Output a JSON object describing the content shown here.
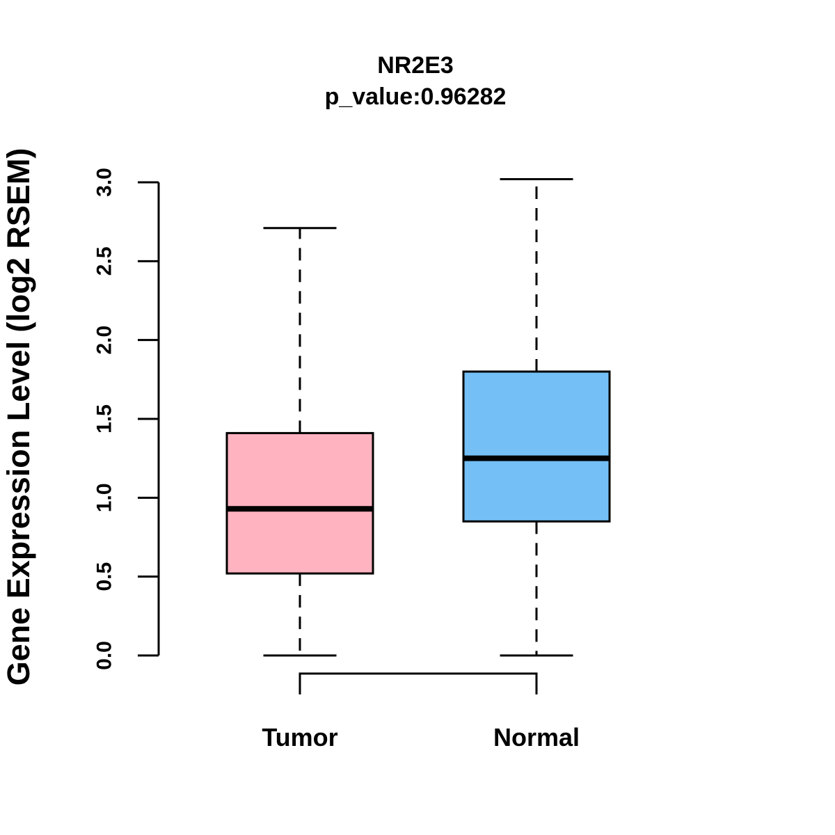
{
  "chart_data": {
    "type": "boxplot",
    "title": "NR2E3",
    "subtitle": "p_value:0.96282",
    "p_value": 0.96282,
    "gene": "NR2E3",
    "ylabel": "Gene Expression Level (log2 RSEM)",
    "xlabel": "",
    "ylim": [
      0.0,
      3.0
    ],
    "yticks": [
      0.0,
      0.5,
      1.0,
      1.5,
      2.0,
      2.5,
      3.0
    ],
    "grid": false,
    "whisker_style": "dashed",
    "axis_color": "#000000",
    "background_color": "#FFFFFF",
    "categories": [
      "Tumor",
      "Normal"
    ],
    "groups": [
      {
        "label": "Tumor",
        "color": "#FFB3C1",
        "whisker_low": 0.0,
        "q1": 0.52,
        "median": 0.93,
        "q3": 1.41,
        "whisker_high": 2.71
      },
      {
        "label": "Normal",
        "color": "#74BFF5",
        "whisker_low": 0.0,
        "q1": 0.85,
        "median": 1.25,
        "q3": 1.8,
        "whisker_high": 3.02
      }
    ]
  }
}
